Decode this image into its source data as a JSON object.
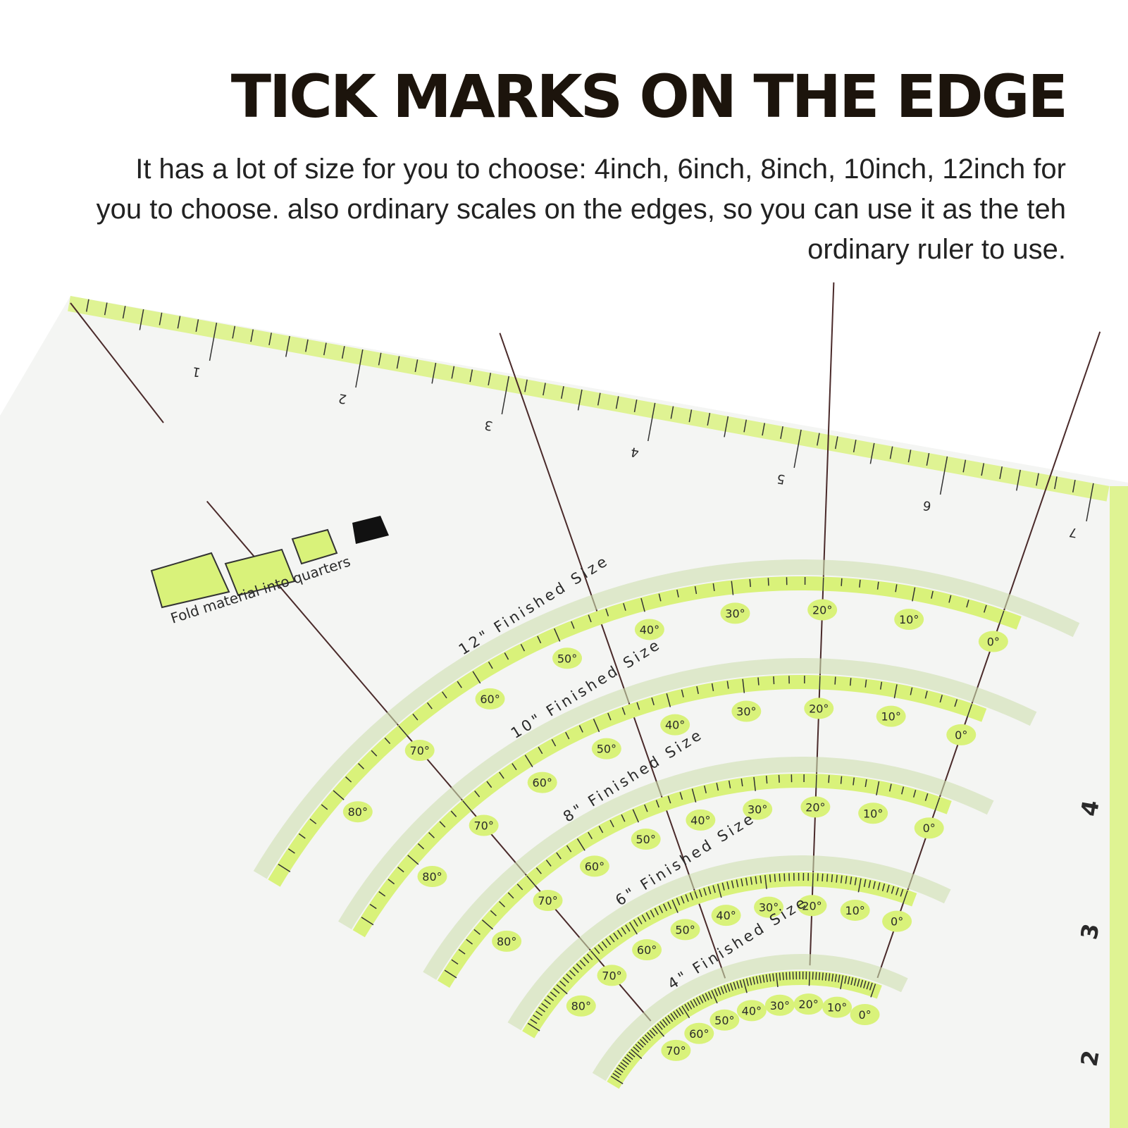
{
  "title": "TICK MARKS ON THE EDGE",
  "description": "It has a lot of size for you to choose: 4inch, 6inch, 8inch, 10inch, 12inch for you to choose. also ordinary scales on the edges, so you can use it as the teh ordinary ruler to use.",
  "ruler": {
    "fold_instruction": "Fold material into quarters",
    "top_edge_numbers": [
      "1",
      "2",
      "3",
      "4",
      "5",
      "6",
      "7"
    ],
    "right_edge_numbers": [
      "4",
      "3",
      "2"
    ],
    "arcs": [
      {
        "label": "12\" Finished Size",
        "degrees": [
          "0°",
          "10°",
          "20°",
          "30°",
          "40°",
          "50°",
          "60°",
          "70°",
          "80°"
        ]
      },
      {
        "label": "10\" Finished Size",
        "degrees": [
          "0°",
          "10°",
          "20°",
          "30°",
          "40°",
          "50°",
          "60°",
          "70°",
          "80°"
        ]
      },
      {
        "label": "8\" Finished Size",
        "degrees": [
          "0°",
          "10°",
          "20°",
          "30°",
          "40°",
          "50°",
          "60°",
          "70°",
          "80°"
        ]
      },
      {
        "label": "6\" Finished Size",
        "degrees": [
          "0°",
          "10°",
          "20°",
          "30°",
          "40°",
          "50°",
          "60°",
          "70°",
          "80°"
        ]
      },
      {
        "label": "4\" Finished Size",
        "degrees": [
          "0°",
          "10°",
          "20°",
          "30°",
          "40°",
          "50°",
          "60°",
          "70°"
        ]
      }
    ],
    "colors": {
      "accent": "#d9f27a",
      "line": "#4a2a2a",
      "sheet": "#f4f5f3"
    }
  }
}
